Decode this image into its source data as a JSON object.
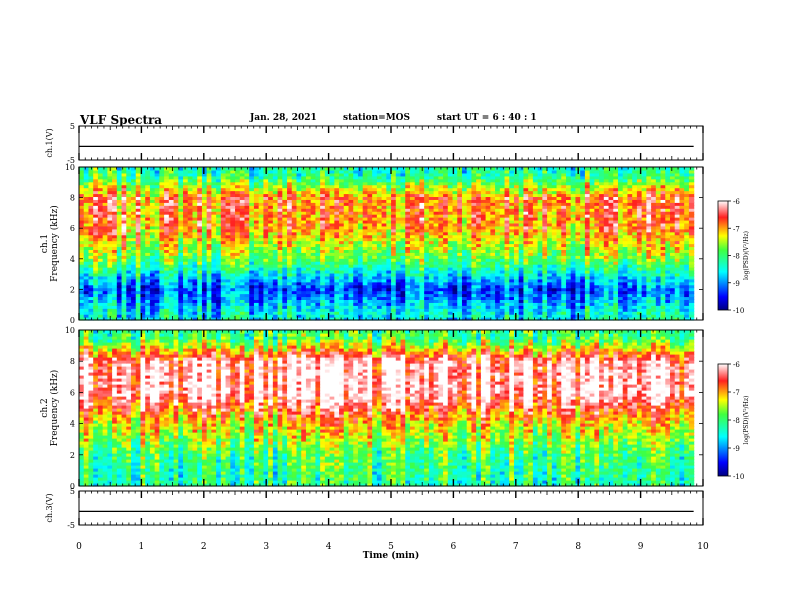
{
  "header": {
    "title": "VLF Spectra",
    "date": "Jan. 28, 2021",
    "station": "station=MOS",
    "start_ut": "start UT =  6 : 40 : 1"
  },
  "chart_data": [
    {
      "type": "line",
      "ylabel": "ch.1(V)",
      "ylim": [
        -5,
        5
      ],
      "ytick_labels": [
        "5",
        "-5"
      ],
      "series": [
        {
          "values": [
            -1,
            -1
          ]
        }
      ],
      "x": [
        0,
        9.85
      ],
      "trace_level": -1
    },
    {
      "type": "heatmap",
      "ylabel": "Frequency (kHz)",
      "channel_label": "ch.1",
      "ylim": [
        0,
        10
      ],
      "ytick_labels": [
        "0",
        "2",
        "4",
        "6",
        "8",
        "10"
      ],
      "data_end_min": 9.85,
      "colorbar": {
        "label": "log(PSD)(V²/Hz)",
        "range": [
          -10,
          -6
        ],
        "tick_labels": [
          "-6",
          "-7",
          "-8",
          "-9",
          "-10"
        ]
      },
      "typical_log_psd_by_freq": {
        "freq_khz": [
          0.5,
          2,
          4,
          6,
          8,
          9.5
        ],
        "log_psd": [
          -8.5,
          -9.3,
          -7.8,
          -6.9,
          -6.8,
          -8.2
        ]
      }
    },
    {
      "type": "heatmap",
      "ylabel": "Frequency (kHz)",
      "channel_label": "ch.2",
      "ylim": [
        0,
        10
      ],
      "ytick_labels": [
        "0",
        "2",
        "4",
        "6",
        "8",
        "10"
      ],
      "data_end_min": 9.85,
      "colorbar": {
        "label": "log(PSD)(V²/Hz)",
        "range": [
          -10,
          -6
        ],
        "tick_labels": [
          "-6",
          "-7",
          "-8",
          "-9",
          "-10"
        ]
      },
      "typical_log_psd_by_freq": {
        "freq_khz": [
          0.5,
          2,
          4,
          6,
          8,
          9.5
        ],
        "log_psd": [
          -8.2,
          -8.0,
          -7.2,
          -6.1,
          -6.2,
          -8.0
        ]
      }
    },
    {
      "type": "line",
      "ylabel": "ch.3(V)",
      "ylim": [
        -5,
        5
      ],
      "ytick_labels": [
        "5",
        "-5"
      ],
      "series": [
        {
          "values": [
            -1,
            -1
          ]
        }
      ],
      "x": [
        0,
        9.85
      ],
      "trace_level": -1
    }
  ],
  "xaxis": {
    "xlabel": "Time (min)",
    "xlim": [
      0,
      10
    ],
    "tick_labels": [
      "0",
      "1",
      "2",
      "3",
      "4",
      "5",
      "6",
      "7",
      "8",
      "9",
      "10"
    ]
  }
}
